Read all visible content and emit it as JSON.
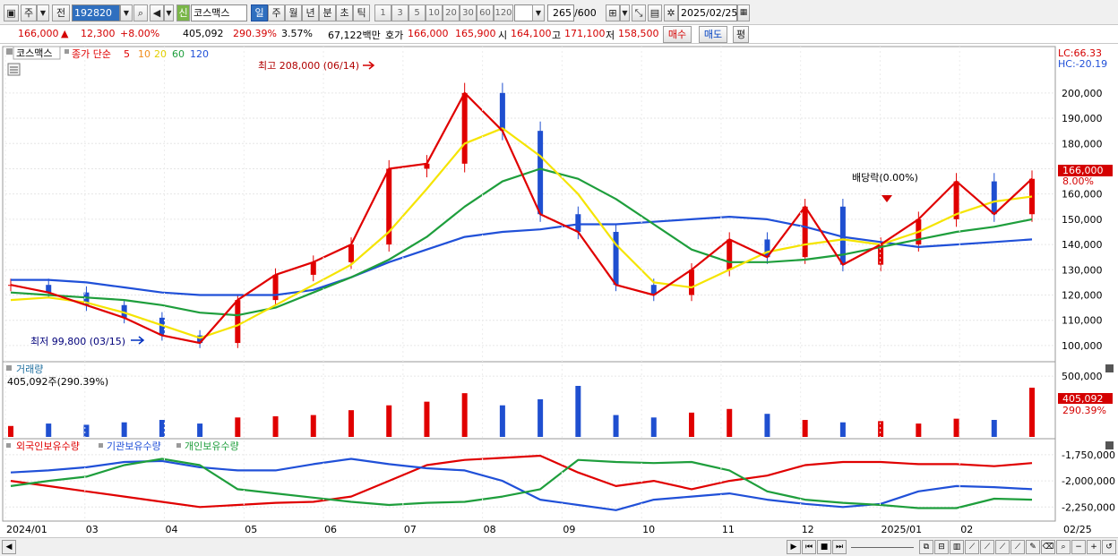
{
  "toolbar": {
    "type_label": "주",
    "all_label": "전",
    "code": "192820",
    "new_badge": "신",
    "name": "코스맥스",
    "periods": [
      "일",
      "주",
      "월",
      "년",
      "분",
      "초",
      "틱"
    ],
    "active_period": "일",
    "intervals": [
      "1",
      "3",
      "5",
      "10",
      "20",
      "30",
      "60",
      "120"
    ],
    "count": "265",
    "count_total": "/600",
    "date": "2025/02/25"
  },
  "quote": {
    "price": "166,000",
    "change_arrow": "▲",
    "change": "12,300",
    "change_pct": "+8.00%",
    "volume": "405,092",
    "volume_ratio": "290.39%",
    "turnover_pct": "3.57%",
    "trade_value": "67,122백만",
    "bid_label": "호가",
    "ask": "166,000",
    "bid": "165,900",
    "open_label": "시",
    "open": "164,100",
    "high_label": "고",
    "high": "171,100",
    "low_label": "저",
    "low": "158,500",
    "buy_label": "매수",
    "sell_label": "매도",
    "eval_label": "평"
  },
  "price_panel": {
    "title": "코스맥스",
    "ma_label": "종가 단순",
    "ma_periods": [
      {
        "label": "5",
        "color": "#e00000"
      },
      {
        "label": "10",
        "color": "#f08c1a"
      },
      {
        "label": "20",
        "color": "#f0e000"
      },
      {
        "label": "60",
        "color": "#1e9e3c"
      },
      {
        "label": "120",
        "color": "#2050d8"
      }
    ],
    "lc_label": "LC:66.33",
    "hc_label": "HC:-20.19",
    "high_marker": "최고 208,000 (06/14)",
    "low_marker": "최저 99,800 (03/15)",
    "dividend_marker": "배당락(0.00%)",
    "current_price_tag": "166,000",
    "current_pct_tag": "8.00%",
    "y_ticks": [
      "200,000",
      "190,000",
      "180,000",
      "170,000",
      "160,000",
      "150,000",
      "140,000",
      "130,000",
      "120,000",
      "110,000",
      "100,000"
    ]
  },
  "volume_panel": {
    "title": "거래량",
    "subtitle": "405,092주(290.39%)",
    "y_ticks": [
      "500,000"
    ],
    "value_tag": "405,092",
    "pct_tag": "290.39%"
  },
  "holdings_panel": {
    "series_labels": [
      "외국인보유수량",
      "기관보유수량",
      "개인보유수량"
    ],
    "series_colors": [
      "#e00000",
      "#2050d8",
      "#1e9e3c"
    ],
    "y_ticks": [
      "-1,750,000",
      "-2,000,000",
      "-2,250,000"
    ]
  },
  "x_axis": {
    "labels": [
      "2024/01",
      "03",
      "04",
      "05",
      "06",
      "07",
      "08",
      "09",
      "10",
      "11",
      "12",
      "2025/01",
      "02",
      "02/25"
    ]
  },
  "chart_data": {
    "type": "candlestick",
    "title": "코스맥스",
    "ylim": [
      95000,
      212000
    ],
    "x": [
      "2024/01",
      "01",
      "02",
      "02",
      "03",
      "03",
      "04",
      "04",
      "05",
      "05",
      "06",
      "06",
      "07",
      "07",
      "08",
      "08",
      "09",
      "09",
      "10",
      "10",
      "11",
      "11",
      "12",
      "12",
      "2025/01",
      "01",
      "02",
      "02/25"
    ],
    "close": [
      124000,
      121000,
      116000,
      111000,
      104000,
      101000,
      118000,
      128000,
      133000,
      140000,
      170000,
      172000,
      200000,
      185000,
      152000,
      145000,
      124000,
      120000,
      130000,
      142000,
      135000,
      155000,
      132000,
      140000,
      150000,
      165000,
      152000,
      166000
    ],
    "ma20": [
      118000,
      119000,
      117000,
      113000,
      108000,
      103000,
      108000,
      116000,
      124000,
      132000,
      145000,
      162000,
      180000,
      186000,
      175000,
      160000,
      140000,
      125000,
      123000,
      130000,
      137000,
      140000,
      142000,
      140000,
      145000,
      152000,
      157000,
      159000
    ],
    "ma60": [
      121000,
      120000,
      119000,
      118000,
      116000,
      113000,
      112000,
      115000,
      121000,
      127000,
      134000,
      143000,
      155000,
      165000,
      170000,
      166000,
      158000,
      148000,
      138000,
      133000,
      133000,
      134000,
      136000,
      139000,
      142000,
      145000,
      147000,
      150000
    ],
    "ma120": [
      126000,
      126000,
      125000,
      123000,
      121000,
      120000,
      120000,
      120000,
      122000,
      127000,
      133000,
      138000,
      143000,
      145000,
      146000,
      148000,
      148000,
      149000,
      150000,
      151000,
      150000,
      147000,
      143000,
      141000,
      139000,
      140000,
      141000,
      142000
    ],
    "volume": [
      90000,
      110000,
      100000,
      120000,
      140000,
      110000,
      160000,
      170000,
      180000,
      220000,
      260000,
      290000,
      360000,
      260000,
      310000,
      420000,
      180000,
      160000,
      200000,
      230000,
      190000,
      140000,
      120000,
      130000,
      110000,
      150000,
      140000,
      405092
    ],
    "foreign": [
      -2000000,
      -2050000,
      -2100000,
      -2150000,
      -2200000,
      -2250000,
      -2230000,
      -2210000,
      -2200000,
      -2150000,
      -2000000,
      -1850000,
      -1800000,
      -1780000,
      -1760000,
      -1920000,
      -2050000,
      -2000000,
      -2080000,
      -2000000,
      -1950000,
      -1850000,
      -1820000,
      -1820000,
      -1840000,
      -1840000,
      -1860000,
      -1830000
    ],
    "institution": [
      -1920000,
      -1900000,
      -1870000,
      -1820000,
      -1810000,
      -1870000,
      -1900000,
      -1900000,
      -1840000,
      -1790000,
      -1840000,
      -1880000,
      -1900000,
      -2000000,
      -2180000,
      -2230000,
      -2280000,
      -2180000,
      -2150000,
      -2120000,
      -2180000,
      -2220000,
      -2250000,
      -2220000,
      -2100000,
      -2050000,
      -2060000,
      -2080000
    ],
    "individual": [
      -2050000,
      -2000000,
      -1960000,
      -1850000,
      -1790000,
      -1850000,
      -2080000,
      -2120000,
      -2160000,
      -2200000,
      -2230000,
      -2210000,
      -2200000,
      -2150000,
      -2080000,
      -1800000,
      -1820000,
      -1830000,
      -1820000,
      -1900000,
      -2100000,
      -2180000,
      -2210000,
      -2230000,
      -2260000,
      -2260000,
      -2170000,
      -2180000
    ]
  }
}
